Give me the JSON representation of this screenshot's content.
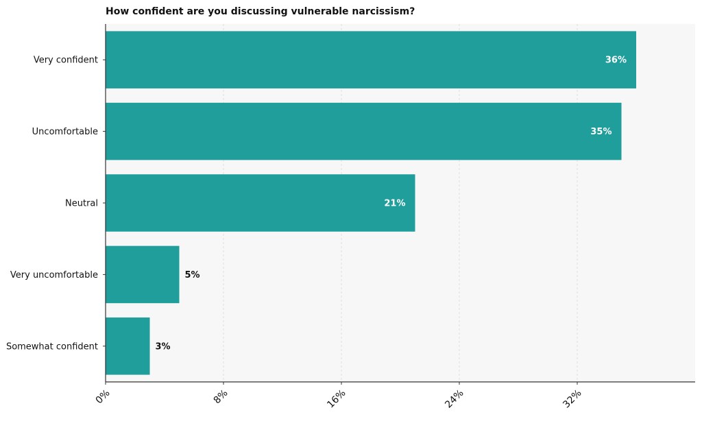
{
  "chart_data": {
    "type": "bar",
    "orientation": "horizontal",
    "title": "How confident are you discussing vulnerable narcissism?",
    "xlabel": "",
    "ylabel": "",
    "categories": [
      "Very confident",
      "Uncomfortable",
      "Neutral",
      "Very uncomfortable",
      "Somewhat confident"
    ],
    "values": [
      36,
      35,
      21,
      5,
      3
    ],
    "value_labels": [
      "36%",
      "35%",
      "21%",
      "5%",
      "3%"
    ],
    "xlim": [
      0,
      40
    ],
    "x_ticks": [
      0,
      8,
      16,
      24,
      32
    ],
    "x_tick_labels": [
      "0%",
      "8%",
      "16%",
      "24%",
      "32%"
    ],
    "grid": "vertical dashed",
    "legend": "none",
    "colors": {
      "bar": "#1f9e9c",
      "plot_background": "#f7f7f7",
      "axis": "#333333",
      "grid": "#d9d9d9",
      "inside_label": "#ffffff",
      "outside_label": "#111111"
    }
  }
}
